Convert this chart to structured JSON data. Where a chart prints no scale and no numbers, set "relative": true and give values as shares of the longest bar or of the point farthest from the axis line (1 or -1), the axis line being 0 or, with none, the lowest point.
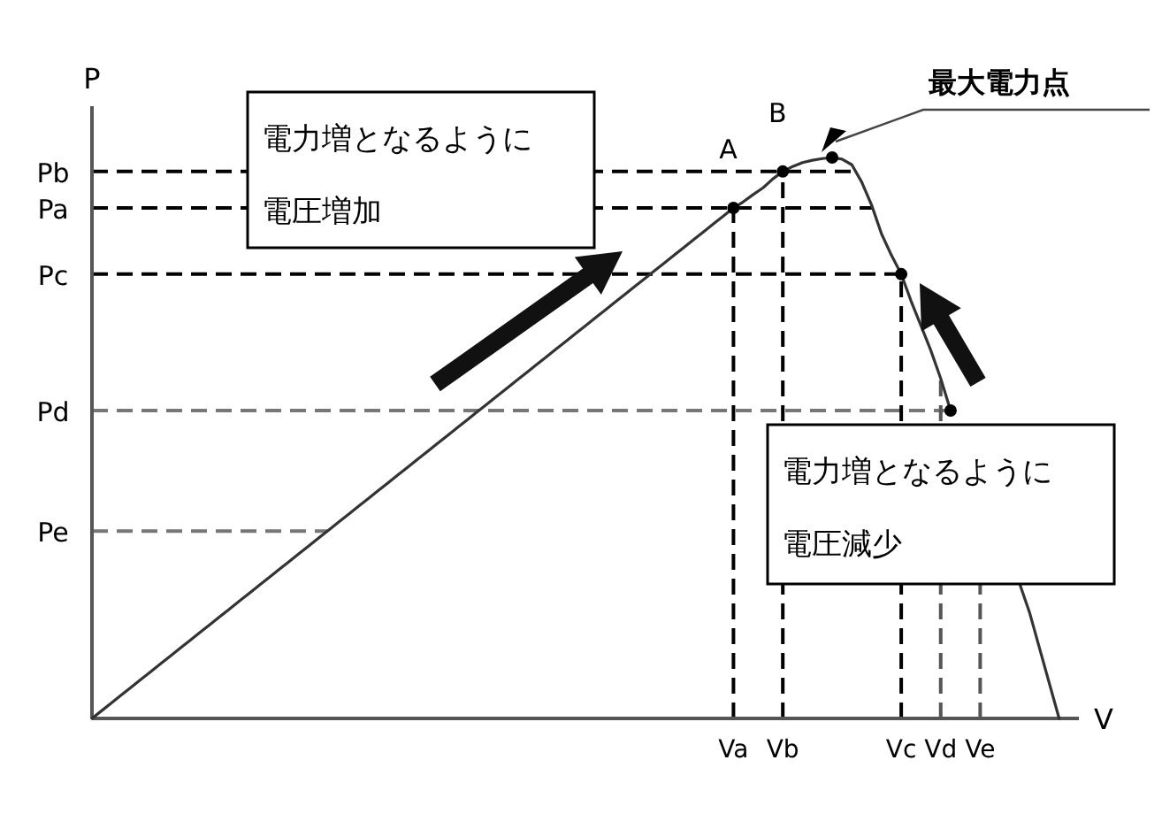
{
  "chart_data": {
    "type": "line",
    "relative": true,
    "xlabel": "V",
    "ylabel": "P",
    "grid": false,
    "categories": [
      null,
      null,
      null,
      null,
      null,
      null,
      null,
      null,
      null,
      null,
      null,
      null,
      null,
      null,
      null,
      null,
      null,
      null,
      null,
      null,
      null,
      null,
      null,
      null,
      null,
      null,
      null,
      null,
      null,
      null,
      null,
      null,
      null,
      null,
      null,
      null,
      null,
      null,
      null,
      null,
      null,
      null,
      null,
      null,
      null,
      null,
      null,
      null,
      null,
      null,
      null,
      null,
      null,
      null,
      null,
      null,
      null,
      null,
      null,
      null,
      null,
      null,
      null,
      null,
      null,
      "Va",
      null,
      null,
      null,
      null,
      "Vb",
      null,
      null,
      null,
      null,
      null,
      null,
      null,
      null,
      null,
      null,
      null,
      "Vc",
      null,
      null,
      null,
      "Vd",
      null,
      null,
      null,
      "Ve",
      null,
      null,
      null,
      null,
      null,
      null,
      null,
      null,
      null,
      null
    ],
    "series": [
      {
        "color": "#333333",
        "line_style": "solid",
        "marker": "none",
        "values": [
          0,
          0.014,
          0.028,
          0.042,
          0.056,
          0.07,
          0.084,
          0.098,
          0.112,
          0.126,
          0.14,
          0.154,
          0.168,
          0.182,
          0.196,
          0.21,
          0.224,
          0.238,
          0.252,
          0.266,
          0.28,
          0.294,
          0.308,
          0.322,
          0.336,
          0.35,
          0.364,
          0.378,
          0.392,
          0.406,
          0.42,
          0.434,
          0.448,
          0.462,
          0.476,
          0.49,
          0.504,
          0.518,
          0.532,
          0.546,
          0.56,
          0.574,
          0.588,
          0.602,
          0.616,
          0.63,
          0.644,
          0.658,
          0.672,
          0.686,
          0.7,
          0.714,
          0.728,
          0.742,
          0.756,
          0.77,
          0.784,
          0.798,
          0.812,
          0.826,
          0.84,
          0.854,
          0.868,
          0.882,
          0.896,
          0.91,
          0.921,
          0.934,
          0.946,
          0.962,
          0.975,
          0.984,
          0.991,
          0.995,
          0.998,
          1,
          0.997,
          0.987,
          0.956,
          0.915,
          0.864,
          0.826,
          0.792,
          0.744,
          0.7,
          0.656,
          0.606,
          0.549,
          null,
          null,
          null,
          null,
          null,
          null,
          0.24,
          0.189,
          0.126,
          0.063,
          0,
          null,
          null
        ]
      },
      {
        "type": "scatter",
        "color": "#000000",
        "marker": "circle",
        "values": [
          null,
          null,
          null,
          null,
          null,
          null,
          null,
          null,
          null,
          null,
          null,
          null,
          null,
          null,
          null,
          null,
          null,
          null,
          null,
          null,
          null,
          null,
          null,
          null,
          null,
          null,
          null,
          null,
          null,
          null,
          null,
          null,
          null,
          null,
          null,
          null,
          null,
          null,
          null,
          null,
          null,
          null,
          null,
          null,
          null,
          null,
          null,
          null,
          null,
          null,
          null,
          null,
          null,
          null,
          null,
          null,
          null,
          null,
          null,
          null,
          null,
          null,
          null,
          null,
          null,
          0.91,
          null,
          null,
          null,
          null,
          0.975,
          null,
          null,
          null,
          null,
          1,
          null,
          null,
          null,
          null,
          null,
          null,
          0.792,
          null,
          null,
          null,
          null,
          0.549,
          null,
          null,
          null,
          null,
          null,
          null,
          null,
          null,
          null,
          null,
          null,
          null,
          null
        ]
      }
    ],
    "ref_lines": [
      {
        "axis": "y",
        "value": 0.975,
        "label": "Pb",
        "color": "#000000",
        "line_style": "dashed"
      },
      {
        "axis": "y",
        "value": 0.91,
        "label": "Pa",
        "color": "#000000",
        "line_style": "dashed"
      },
      {
        "axis": "y",
        "value": 0.792,
        "label": "Pc",
        "color": "#000000",
        "line_style": "dashed"
      },
      {
        "axis": "y",
        "value": 0.549,
        "label": "Pd",
        "color": "#777777",
        "line_style": "dashed"
      },
      {
        "axis": "y",
        "value": 0.334,
        "label": "Pe",
        "color": "#777777",
        "line_style": "dashed"
      },
      {
        "axis": "x",
        "value": "Va",
        "color": "#000000",
        "line_style": "dashed"
      },
      {
        "axis": "x",
        "value": "Vb",
        "color": "#000000",
        "line_style": "dashed"
      },
      {
        "axis": "x",
        "value": "Vc",
        "color": "#000000",
        "line_style": "dashed"
      },
      {
        "axis": "x",
        "value": "Vd",
        "color": "#555555",
        "line_style": "dashed"
      },
      {
        "axis": "x",
        "value": "Ve",
        "color": "#555555",
        "line_style": "dashed"
      }
    ],
    "annotations": [
      {
        "text": "A",
        "x": "Va",
        "y": 0.91
      },
      {
        "text": "B",
        "x": "Vb",
        "y": 0.975
      },
      "最大電力点",
      "電力増となるように",
      "電圧増加",
      "電力増となるように",
      "電圧減少"
    ]
  }
}
